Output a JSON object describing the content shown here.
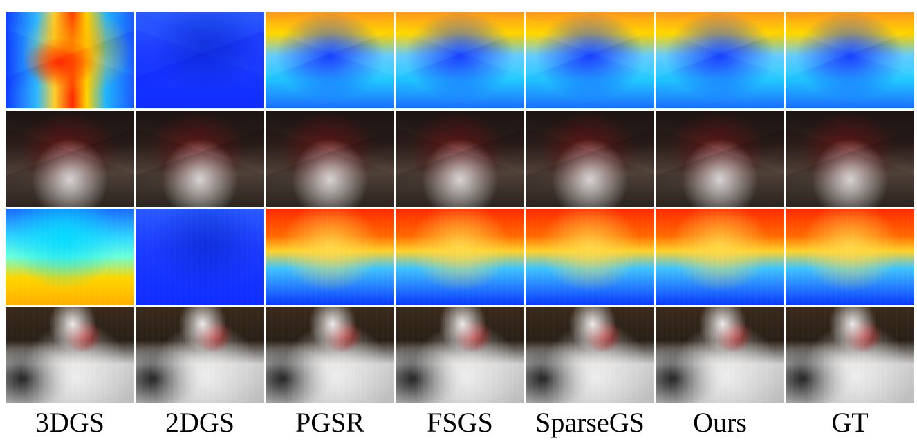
{
  "figure": {
    "methods": [
      "3DGS",
      "2DGS",
      "PGSR",
      "FSGS",
      "SparseGS",
      "Ours",
      "GT"
    ],
    "rows": [
      {
        "name": "depth-row-1",
        "tiles": [
          {
            "method": "3DGS",
            "kind": "depth",
            "style": "depth-3dgs-row1",
            "detail": "detail-table"
          },
          {
            "method": "2DGS",
            "kind": "depth",
            "style": "depth-cold",
            "detail": "detail-table"
          },
          {
            "method": "PGSR",
            "kind": "depth",
            "style": "depth-balanced",
            "detail": "detail-table"
          },
          {
            "method": "FSGS",
            "kind": "depth",
            "style": "depth-balanced",
            "detail": "detail-table"
          },
          {
            "method": "SparseGS",
            "kind": "depth",
            "style": "depth-balanced",
            "detail": "detail-table"
          },
          {
            "method": "Ours",
            "kind": "depth",
            "style": "depth-balanced",
            "detail": "detail-table"
          },
          {
            "method": "GT",
            "kind": "depth",
            "style": "depth-balanced",
            "detail": "detail-table"
          }
        ]
      },
      {
        "name": "rgb-row-1",
        "tiles": [
          {
            "method": "3DGS",
            "kind": "rgb",
            "style": "rgb-kitchen",
            "detail": "detail-table"
          },
          {
            "method": "2DGS",
            "kind": "rgb",
            "style": "rgb-kitchen",
            "detail": "detail-table"
          },
          {
            "method": "PGSR",
            "kind": "rgb",
            "style": "rgb-kitchen",
            "detail": "detail-table"
          },
          {
            "method": "FSGS",
            "kind": "rgb",
            "style": "rgb-kitchen",
            "detail": "detail-table"
          },
          {
            "method": "SparseGS",
            "kind": "rgb",
            "style": "rgb-kitchen",
            "detail": "detail-table"
          },
          {
            "method": "Ours",
            "kind": "rgb",
            "style": "rgb-kitchen",
            "detail": "detail-table"
          },
          {
            "method": "GT",
            "kind": "rgb",
            "style": "rgb-kitchen",
            "detail": "detail-table"
          }
        ]
      },
      {
        "name": "depth-row-2",
        "tiles": [
          {
            "method": "3DGS",
            "kind": "depth",
            "style": "depth-3dgs-row3",
            "detail": "detail-bed"
          },
          {
            "method": "2DGS",
            "kind": "depth",
            "style": "depth-cold",
            "detail": "detail-bed"
          },
          {
            "method": "PGSR",
            "kind": "depth",
            "style": "depth-hot",
            "detail": "detail-bed"
          },
          {
            "method": "FSGS",
            "kind": "depth",
            "style": "depth-hot",
            "detail": "detail-bed"
          },
          {
            "method": "SparseGS",
            "kind": "depth",
            "style": "depth-hot",
            "detail": "detail-bed"
          },
          {
            "method": "Ours",
            "kind": "depth",
            "style": "depth-hot",
            "detail": "detail-bed"
          },
          {
            "method": "GT",
            "kind": "depth",
            "style": "depth-hot",
            "detail": "detail-bed"
          }
        ]
      },
      {
        "name": "rgb-row-2",
        "tiles": [
          {
            "method": "3DGS",
            "kind": "rgb",
            "style": "rgb-bedroom",
            "detail": "detail-bed"
          },
          {
            "method": "2DGS",
            "kind": "rgb",
            "style": "rgb-bedroom",
            "detail": "detail-bed"
          },
          {
            "method": "PGSR",
            "kind": "rgb",
            "style": "rgb-bedroom",
            "detail": "detail-bed"
          },
          {
            "method": "FSGS",
            "kind": "rgb",
            "style": "rgb-bedroom",
            "detail": "detail-bed"
          },
          {
            "method": "SparseGS",
            "kind": "rgb",
            "style": "rgb-bedroom",
            "detail": "detail-bed"
          },
          {
            "method": "Ours",
            "kind": "rgb",
            "style": "rgb-bedroom",
            "detail": "detail-bed"
          },
          {
            "method": "GT",
            "kind": "rgb",
            "style": "rgb-bedroom",
            "detail": "detail-bed"
          }
        ]
      }
    ]
  }
}
